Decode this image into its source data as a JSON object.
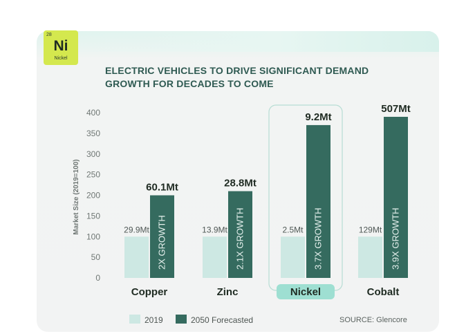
{
  "badge": {
    "number": "28",
    "symbol": "Ni",
    "name": "Nickel"
  },
  "colors": {
    "y2019": "#cde8e3",
    "y2050": "#356b5f",
    "axis_text": "#6f7774",
    "label_dark": "#1f2b22",
    "highlight": "#9edfd2"
  },
  "chart_data": {
    "type": "bar",
    "title": "ELECTRIC VEHICLES TO DRIVE SIGNIFICANT DEMAND GROWTH FOR DECADES TO COME",
    "ylabel": "Market Size (2019=100)",
    "xlabel": "",
    "ylim": [
      0,
      400
    ],
    "yticks": [
      0,
      50,
      100,
      150,
      200,
      250,
      300,
      350,
      400
    ],
    "categories": [
      "Copper",
      "Zinc",
      "Nickel",
      "Cobalt"
    ],
    "highlight_category": "Nickel",
    "series": [
      {
        "name": "2019",
        "values": [
          100,
          100,
          100,
          100
        ],
        "labels": [
          "29.9Mt",
          "13.9Mt",
          "2.5Mt",
          "129Mt"
        ]
      },
      {
        "name": "2050 Forecasted",
        "values": [
          200,
          210,
          370,
          390
        ],
        "labels": [
          "60.1Mt",
          "28.8Mt",
          "9.2Mt",
          "507Mt"
        ],
        "inner_labels": [
          "2X GROWTH",
          "2.1X GROWTH",
          "3.7X GROWTH",
          "3.9X GROWTH"
        ]
      }
    ],
    "legend": [
      "2019",
      "2050 Forecasted"
    ],
    "legend_position": "bottom-left",
    "source": "SOURCE: Glencore"
  }
}
